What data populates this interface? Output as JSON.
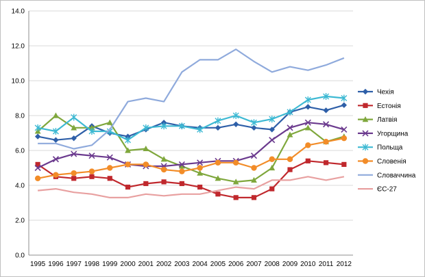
{
  "chart_data": {
    "type": "line",
    "title": "",
    "xlabel": "",
    "ylabel": "",
    "ylim": [
      0,
      14
    ],
    "yticks": [
      "0.0",
      "2.0",
      "4.0",
      "6.0",
      "8.0",
      "10.0",
      "12.0",
      "14.0"
    ],
    "grid": true,
    "legend_position": "right",
    "categories": [
      "1995",
      "1996",
      "1997",
      "1998",
      "1999",
      "2000",
      "2001",
      "2002",
      "2003",
      "2004",
      "2005",
      "2006",
      "2007",
      "2008",
      "2009",
      "2010",
      "2011",
      "2012"
    ],
    "series": [
      {
        "name": "Чехія",
        "color": "#2E5FA8",
        "marker": "diamond",
        "values": [
          6.8,
          6.6,
          6.7,
          7.4,
          7.0,
          6.8,
          7.2,
          7.6,
          7.4,
          7.3,
          7.3,
          7.5,
          7.3,
          7.2,
          8.2,
          8.5,
          8.3,
          8.6
        ]
      },
      {
        "name": "Естонія",
        "color": "#C0282D",
        "marker": "square",
        "values": [
          5.2,
          4.5,
          4.4,
          4.5,
          4.4,
          3.9,
          4.1,
          4.2,
          4.1,
          3.9,
          3.5,
          3.3,
          3.3,
          3.8,
          4.9,
          5.4,
          5.3,
          5.2
        ]
      },
      {
        "name": "Латвія",
        "color": "#7FA73C",
        "marker": "triangle",
        "values": [
          7.1,
          8.0,
          7.3,
          7.3,
          7.6,
          6.0,
          6.1,
          5.5,
          5.1,
          4.7,
          4.4,
          4.2,
          4.3,
          5.0,
          6.9,
          7.3,
          6.5,
          6.8
        ]
      },
      {
        "name": "Угорщина",
        "color": "#6B3A8E",
        "marker": "x",
        "values": [
          5.0,
          5.5,
          5.8,
          5.7,
          5.6,
          5.2,
          5.1,
          5.1,
          5.2,
          5.3,
          5.4,
          5.4,
          5.7,
          6.6,
          7.3,
          7.6,
          7.5,
          7.2
        ]
      },
      {
        "name": "Польща",
        "color": "#3DB9D3",
        "marker": "star",
        "values": [
          7.3,
          7.1,
          7.9,
          7.1,
          7.1,
          6.6,
          7.3,
          7.4,
          7.4,
          7.2,
          7.7,
          8.0,
          7.6,
          7.8,
          8.2,
          8.9,
          9.1,
          9.0
        ]
      },
      {
        "name": "Словенія",
        "color": "#F28C28",
        "marker": "circle",
        "values": [
          4.4,
          4.6,
          4.7,
          4.8,
          5.0,
          5.2,
          5.2,
          4.9,
          4.8,
          5.0,
          5.3,
          5.3,
          5.0,
          5.5,
          5.5,
          6.3,
          6.5,
          6.7
        ]
      },
      {
        "name": "Словаччина",
        "color": "#8FAADC",
        "marker": "none",
        "values": [
          6.4,
          6.4,
          6.1,
          6.3,
          7.2,
          8.8,
          9.0,
          8.8,
          10.5,
          11.2,
          11.2,
          11.8,
          11.1,
          10.5,
          10.8,
          10.6,
          10.9,
          11.3
        ]
      },
      {
        "name": "ЄС-27",
        "color": "#E8A0A0",
        "marker": "none",
        "values": [
          3.7,
          3.8,
          3.6,
          3.5,
          3.3,
          3.3,
          3.5,
          3.4,
          3.5,
          3.5,
          3.7,
          3.9,
          3.8,
          4.3,
          4.3,
          4.5,
          4.3,
          4.5
        ]
      }
    ]
  }
}
